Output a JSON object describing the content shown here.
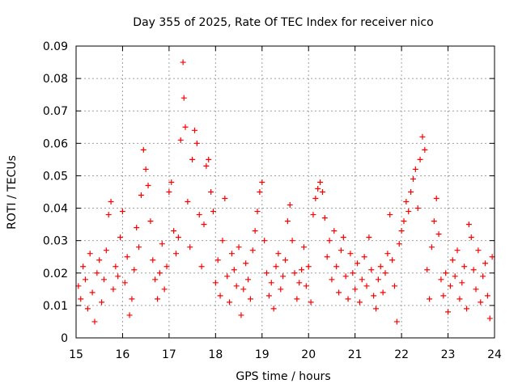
{
  "chart_data": {
    "type": "scatter",
    "title": "Day 355 of 2025, Rate Of TEC Index for receiver nico",
    "xlabel": "GPS time / hours",
    "ylabel": "ROTI / TECUs",
    "xlim": [
      15,
      24
    ],
    "ylim": [
      0,
      0.09
    ],
    "x_ticks": [
      "15",
      "16",
      "17",
      "18",
      "19",
      "20",
      "21",
      "22",
      "23",
      "24"
    ],
    "y_ticks": [
      "0",
      "0.01",
      "0.02",
      "0.03",
      "0.04",
      "0.05",
      "0.06",
      "0.07",
      "0.08",
      "0.09"
    ],
    "grid": true,
    "marker": "+",
    "color": "#ff0000",
    "series": [
      {
        "points": [
          [
            15.05,
            0.016
          ],
          [
            15.1,
            0.012
          ],
          [
            15.15,
            0.022
          ],
          [
            15.2,
            0.018
          ],
          [
            15.25,
            0.009
          ],
          [
            15.3,
            0.026
          ],
          [
            15.35,
            0.014
          ],
          [
            15.4,
            0.005
          ],
          [
            15.45,
            0.02
          ],
          [
            15.5,
            0.024
          ],
          [
            15.55,
            0.011
          ],
          [
            15.6,
            0.018
          ],
          [
            15.65,
            0.027
          ],
          [
            15.7,
            0.038
          ],
          [
            15.75,
            0.042
          ],
          [
            15.8,
            0.015
          ],
          [
            15.85,
            0.022
          ],
          [
            15.9,
            0.019
          ],
          [
            15.95,
            0.031
          ],
          [
            16.0,
            0.039
          ],
          [
            16.05,
            0.017
          ],
          [
            16.1,
            0.025
          ],
          [
            16.15,
            0.007
          ],
          [
            16.2,
            0.012
          ],
          [
            16.25,
            0.021
          ],
          [
            16.3,
            0.034
          ],
          [
            16.35,
            0.028
          ],
          [
            16.4,
            0.044
          ],
          [
            16.45,
            0.058
          ],
          [
            16.5,
            0.052
          ],
          [
            16.55,
            0.047
          ],
          [
            16.6,
            0.036
          ],
          [
            16.65,
            0.024
          ],
          [
            16.7,
            0.018
          ],
          [
            16.75,
            0.012
          ],
          [
            16.8,
            0.02
          ],
          [
            16.85,
            0.029
          ],
          [
            16.9,
            0.015
          ],
          [
            16.95,
            0.022
          ],
          [
            17.0,
            0.045
          ],
          [
            17.05,
            0.048
          ],
          [
            17.1,
            0.033
          ],
          [
            17.15,
            0.026
          ],
          [
            17.2,
            0.031
          ],
          [
            17.25,
            0.061
          ],
          [
            17.3,
            0.085
          ],
          [
            17.32,
            0.074
          ],
          [
            17.35,
            0.065
          ],
          [
            17.4,
            0.042
          ],
          [
            17.45,
            0.028
          ],
          [
            17.5,
            0.055
          ],
          [
            17.55,
            0.064
          ],
          [
            17.6,
            0.06
          ],
          [
            17.65,
            0.038
          ],
          [
            17.7,
            0.022
          ],
          [
            17.75,
            0.035
          ],
          [
            17.8,
            0.053
          ],
          [
            17.85,
            0.055
          ],
          [
            17.9,
            0.045
          ],
          [
            17.95,
            0.039
          ],
          [
            18.0,
            0.017
          ],
          [
            18.05,
            0.024
          ],
          [
            18.1,
            0.013
          ],
          [
            18.15,
            0.03
          ],
          [
            18.2,
            0.043
          ],
          [
            18.25,
            0.019
          ],
          [
            18.3,
            0.011
          ],
          [
            18.35,
            0.026
          ],
          [
            18.4,
            0.021
          ],
          [
            18.45,
            0.016
          ],
          [
            18.5,
            0.028
          ],
          [
            18.55,
            0.007
          ],
          [
            18.6,
            0.015
          ],
          [
            18.65,
            0.023
          ],
          [
            18.7,
            0.018
          ],
          [
            18.75,
            0.012
          ],
          [
            18.8,
            0.027
          ],
          [
            18.85,
            0.033
          ],
          [
            18.9,
            0.039
          ],
          [
            18.95,
            0.045
          ],
          [
            19.0,
            0.048
          ],
          [
            19.05,
            0.03
          ],
          [
            19.1,
            0.02
          ],
          [
            19.15,
            0.013
          ],
          [
            19.2,
            0.017
          ],
          [
            19.25,
            0.009
          ],
          [
            19.3,
            0.022
          ],
          [
            19.35,
            0.026
          ],
          [
            19.4,
            0.015
          ],
          [
            19.45,
            0.019
          ],
          [
            19.5,
            0.024
          ],
          [
            19.55,
            0.036
          ],
          [
            19.6,
            0.041
          ],
          [
            19.65,
            0.03
          ],
          [
            19.7,
            0.02
          ],
          [
            19.75,
            0.012
          ],
          [
            19.8,
            0.017
          ],
          [
            19.85,
            0.021
          ],
          [
            19.9,
            0.028
          ],
          [
            19.95,
            0.016
          ],
          [
            20.0,
            0.022
          ],
          [
            20.05,
            0.011
          ],
          [
            20.1,
            0.038
          ],
          [
            20.15,
            0.043
          ],
          [
            20.2,
            0.046
          ],
          [
            20.25,
            0.048
          ],
          [
            20.3,
            0.045
          ],
          [
            20.35,
            0.037
          ],
          [
            20.4,
            0.025
          ],
          [
            20.45,
            0.03
          ],
          [
            20.5,
            0.018
          ],
          [
            20.55,
            0.033
          ],
          [
            20.6,
            0.022
          ],
          [
            20.65,
            0.014
          ],
          [
            20.7,
            0.027
          ],
          [
            20.75,
            0.031
          ],
          [
            20.8,
            0.019
          ],
          [
            20.85,
            0.012
          ],
          [
            20.9,
            0.026
          ],
          [
            20.95,
            0.02
          ],
          [
            21.0,
            0.015
          ],
          [
            21.05,
            0.023
          ],
          [
            21.1,
            0.011
          ],
          [
            21.15,
            0.018
          ],
          [
            21.2,
            0.025
          ],
          [
            21.25,
            0.016
          ],
          [
            21.3,
            0.031
          ],
          [
            21.35,
            0.021
          ],
          [
            21.4,
            0.013
          ],
          [
            21.45,
            0.009
          ],
          [
            21.5,
            0.018
          ],
          [
            21.55,
            0.022
          ],
          [
            21.6,
            0.014
          ],
          [
            21.65,
            0.02
          ],
          [
            21.7,
            0.026
          ],
          [
            21.75,
            0.038
          ],
          [
            21.8,
            0.024
          ],
          [
            21.85,
            0.016
          ],
          [
            21.9,
            0.005
          ],
          [
            21.95,
            0.029
          ],
          [
            22.0,
            0.033
          ],
          [
            22.05,
            0.036
          ],
          [
            22.1,
            0.042
          ],
          [
            22.15,
            0.039
          ],
          [
            22.2,
            0.045
          ],
          [
            22.25,
            0.049
          ],
          [
            22.3,
            0.052
          ],
          [
            22.35,
            0.04
          ],
          [
            22.4,
            0.055
          ],
          [
            22.45,
            0.062
          ],
          [
            22.5,
            0.058
          ],
          [
            22.55,
            0.021
          ],
          [
            22.6,
            0.012
          ],
          [
            22.65,
            0.028
          ],
          [
            22.7,
            0.036
          ],
          [
            22.75,
            0.043
          ],
          [
            22.8,
            0.032
          ],
          [
            22.85,
            0.018
          ],
          [
            22.9,
            0.013
          ],
          [
            22.95,
            0.02
          ],
          [
            23.0,
            0.008
          ],
          [
            23.05,
            0.016
          ],
          [
            23.1,
            0.024
          ],
          [
            23.15,
            0.019
          ],
          [
            23.2,
            0.027
          ],
          [
            23.25,
            0.012
          ],
          [
            23.3,
            0.017
          ],
          [
            23.35,
            0.022
          ],
          [
            23.4,
            0.009
          ],
          [
            23.45,
            0.035
          ],
          [
            23.5,
            0.031
          ],
          [
            23.55,
            0.021
          ],
          [
            23.6,
            0.015
          ],
          [
            23.65,
            0.027
          ],
          [
            23.7,
            0.011
          ],
          [
            23.75,
            0.019
          ],
          [
            23.8,
            0.023
          ],
          [
            23.85,
            0.013
          ],
          [
            23.9,
            0.006
          ],
          [
            23.95,
            0.025
          ]
        ]
      }
    ]
  }
}
